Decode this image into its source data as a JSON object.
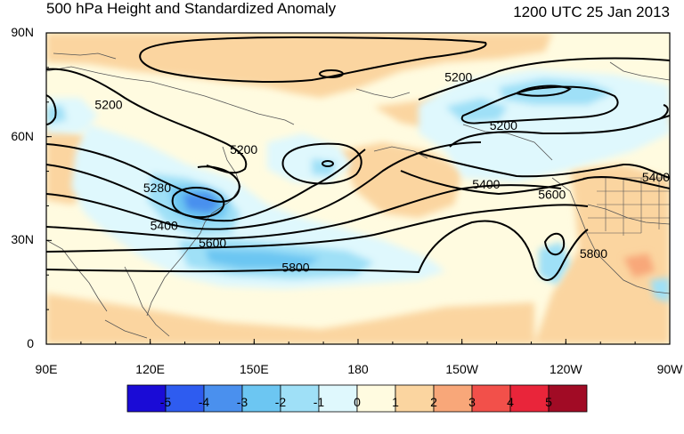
{
  "title": "500 hPa Height and Standardized Anomaly",
  "datetime": "1200 UTC 25 Jan 2013",
  "lat_ticks": [
    {
      "label": "90N",
      "value": 90
    },
    {
      "label": "60N",
      "value": 60
    },
    {
      "label": "30N",
      "value": 30
    },
    {
      "label": "0",
      "value": 0
    }
  ],
  "lon_ticks": [
    {
      "label": "90E",
      "value": 90
    },
    {
      "label": "120E",
      "value": 120
    },
    {
      "label": "150E",
      "value": 150
    },
    {
      "label": "180",
      "value": 180
    },
    {
      "label": "150W",
      "value": 210
    },
    {
      "label": "120W",
      "value": 240
    },
    {
      "label": "90W",
      "value": 270
    }
  ],
  "contour_labels": [
    {
      "text": "5200",
      "lon": 108,
      "lat": 68
    },
    {
      "text": "5200",
      "lon": 147,
      "lat": 55
    },
    {
      "text": "5280",
      "lon": 122,
      "lat": 44
    },
    {
      "text": "5400",
      "lon": 124,
      "lat": 33
    },
    {
      "text": "5600",
      "lon": 138,
      "lat": 28
    },
    {
      "text": "5800",
      "lon": 162,
      "lat": 21
    },
    {
      "text": "5200",
      "lon": 209,
      "lat": 76
    },
    {
      "text": "5200",
      "lon": 222,
      "lat": 62
    },
    {
      "text": "5400",
      "lon": 217,
      "lat": 45
    },
    {
      "text": "5600",
      "lon": 236,
      "lat": 42
    },
    {
      "text": "5800",
      "lon": 248,
      "lat": 25
    },
    {
      "text": "5400",
      "lon": 266,
      "lat": 47
    }
  ],
  "colorbar": {
    "colors": [
      "#1a0bd6",
      "#2e5cf0",
      "#4a90ee",
      "#6cc6f2",
      "#9fe0f7",
      "#dff8fd",
      "#fffbe0",
      "#fbd5a0",
      "#f8a779",
      "#f2504a",
      "#e9253a",
      "#a10b25"
    ],
    "labels": [
      "-5",
      "-4",
      "-3",
      "-2",
      "-1",
      "0",
      "1",
      "2",
      "3",
      "4",
      "5"
    ]
  },
  "chart_data": {
    "type": "heatmap",
    "title": "500 hPa Height and Standardized Anomaly",
    "lon_range": [
      90,
      270
    ],
    "lat_range": [
      0,
      90
    ],
    "contour_field": "500 hPa geopotential height",
    "contour_levels": [
      5200,
      5280,
      5400,
      5600,
      5800
    ],
    "anomaly_levels": [
      -5,
      -4,
      -3,
      -2,
      -1,
      0,
      1,
      2,
      3,
      4,
      5
    ]
  }
}
